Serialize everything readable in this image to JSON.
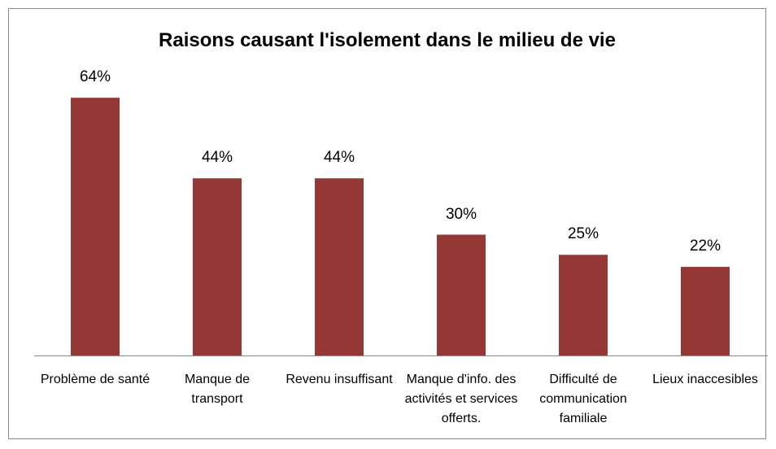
{
  "chart_data": {
    "type": "bar",
    "title": "Raisons causant l'isolement dans le milieu de vie",
    "categories": [
      "Problème de santé",
      "Manque de transport",
      "Revenu insuffisant",
      "Manque d'info. des activités et services offerts.",
      "Difficulté de communication familiale",
      "Lieux inaccesibles"
    ],
    "values": [
      64,
      44,
      44,
      30,
      25,
      22
    ],
    "value_labels": [
      "64%",
      "44%",
      "44%",
      "30%",
      "25%",
      "22%"
    ],
    "color": "#953735"
  }
}
